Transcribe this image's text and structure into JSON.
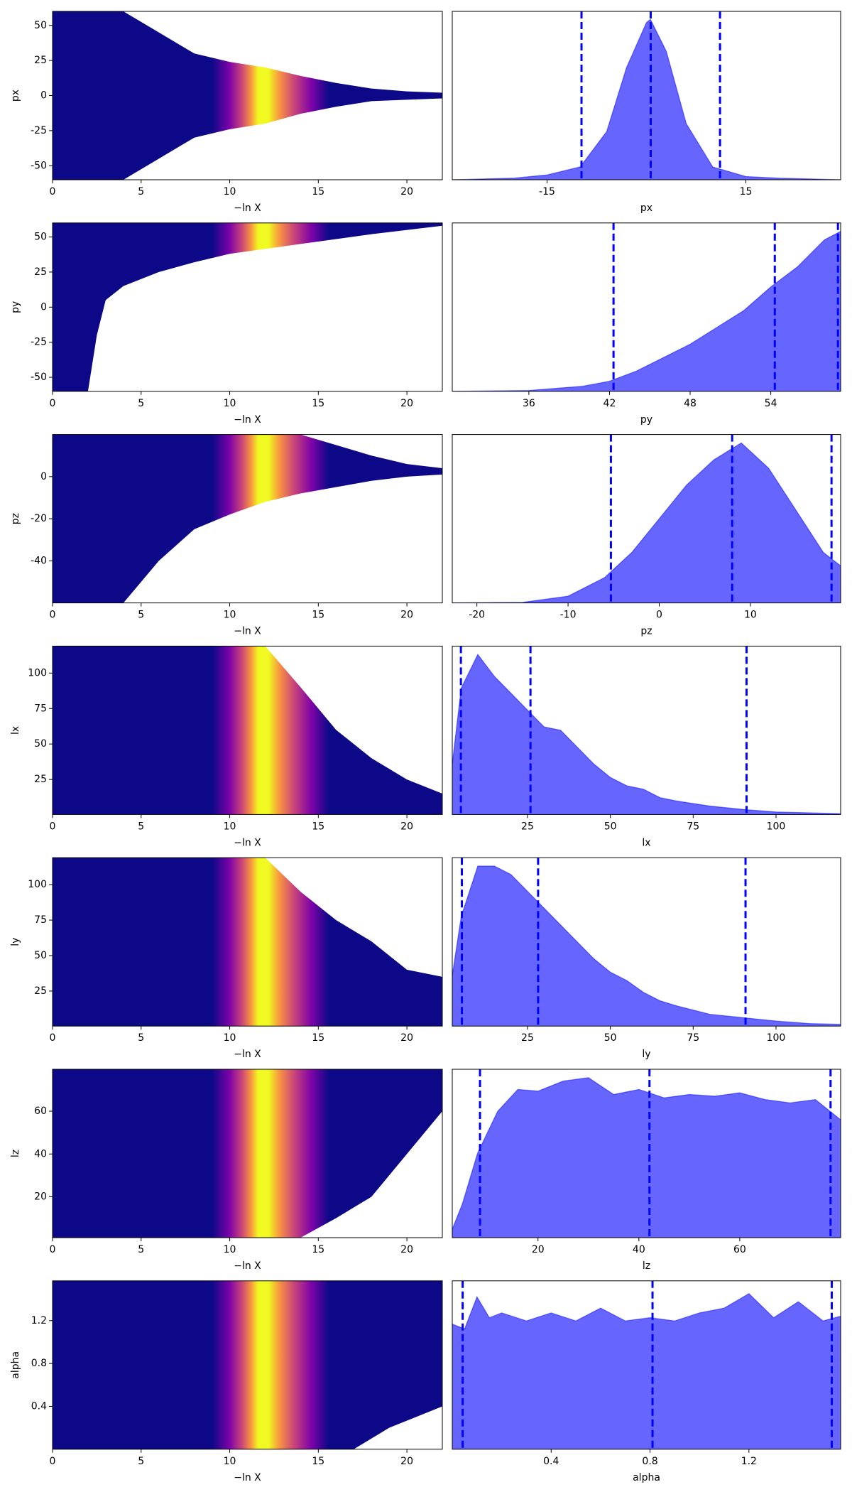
{
  "colormap": {
    "x": [
      9,
      10,
      10.7,
      11.2,
      11.6,
      12.2,
      12.8,
      13.6,
      14.6,
      15.6
    ],
    "colors": [
      "#0d0887",
      "#7e03a8",
      "#cc4778",
      "#f89540",
      "#f0f921",
      "#f0f921",
      "#f89540",
      "#cc4778",
      "#7e03a8",
      "#0d0887"
    ]
  },
  "chart_data": [
    {
      "type": "trace",
      "ylabel": "px",
      "xlabel": "−ln X",
      "xlim": [
        0,
        22
      ],
      "xticks": [
        0,
        5,
        10,
        15,
        20
      ],
      "ylim": [
        -60,
        60
      ],
      "yticks": [
        -50,
        -25,
        0,
        25,
        50
      ],
      "x": [
        0,
        4,
        6,
        8,
        10,
        12,
        14,
        16,
        18,
        20,
        22
      ],
      "upper": [
        60,
        60,
        45,
        30,
        24,
        20,
        14,
        9,
        5,
        3,
        2
      ],
      "lower": [
        -60,
        -60,
        -45,
        -30,
        -24,
        -20,
        -13,
        -8,
        -4,
        -3,
        -2
      ]
    },
    {
      "type": "density",
      "xlabel": "px",
      "xlim": [
        -29.3,
        29.3
      ],
      "xticks": [
        -15,
        15
      ],
      "ylim": [
        0,
        1.05
      ],
      "x": [
        -29.3,
        -20,
        -15,
        -10,
        -6,
        -3,
        0,
        0.6,
        3,
        6,
        10,
        15,
        20,
        29.3
      ],
      "values": [
        0,
        0.01,
        0.03,
        0.08,
        0.3,
        0.7,
        0.98,
        1,
        0.8,
        0.35,
        0.08,
        0.02,
        0.01,
        0
      ],
      "quantiles": [
        -9.8,
        0.64,
        11.1
      ],
      "color": "#6666ff",
      "line_color": "#0000ff"
    },
    {
      "type": "trace",
      "ylabel": "py",
      "xlabel": "−ln X",
      "xlim": [
        0,
        22
      ],
      "xticks": [
        0,
        5,
        10,
        15,
        20
      ],
      "ylim": [
        -60,
        60
      ],
      "yticks": [
        -50,
        -25,
        0,
        25,
        50
      ],
      "x": [
        0,
        1.5,
        2,
        2.5,
        3,
        4,
        6,
        8,
        10,
        14,
        18,
        22
      ],
      "upper": [
        60,
        60,
        60,
        60,
        60,
        60,
        60,
        60,
        60,
        60,
        60,
        60
      ],
      "lower": [
        -60,
        -60,
        -60,
        -20,
        5,
        15,
        25,
        32,
        38,
        45,
        52,
        58
      ]
    },
    {
      "type": "density",
      "xlabel": "py",
      "xlim": [
        30.3,
        59.2
      ],
      "xticks": [
        36,
        42,
        48,
        54
      ],
      "ylim": [
        0,
        1
      ],
      "x": [
        30.3,
        36,
        40,
        42,
        44,
        46,
        48,
        50,
        52,
        54,
        56,
        58,
        59.2
      ],
      "values": [
        0,
        0.005,
        0.03,
        0.06,
        0.12,
        0.2,
        0.28,
        0.38,
        0.48,
        0.62,
        0.74,
        0.9,
        0.95
      ],
      "quantiles": [
        42.3,
        54.3,
        59.0
      ],
      "color": "#6666ff",
      "line_color": "#0000ff"
    },
    {
      "type": "trace",
      "ylabel": "pz",
      "xlabel": "−ln X",
      "xlim": [
        0,
        22
      ],
      "xticks": [
        0,
        5,
        10,
        15,
        20
      ],
      "ylim": [
        -60,
        20
      ],
      "yticks": [
        -40,
        -20,
        0
      ],
      "x": [
        0,
        2,
        4,
        6,
        8,
        10,
        12,
        14,
        16,
        18,
        20,
        22
      ],
      "upper": [
        20,
        20,
        20,
        20,
        20,
        20,
        20,
        20,
        15,
        10,
        6,
        4
      ],
      "lower": [
        -60,
        -60,
        -60,
        -40,
        -25,
        -18,
        -12,
        -8,
        -5,
        -2,
        0,
        1
      ]
    },
    {
      "type": "density",
      "xlabel": "pz",
      "xlim": [
        -22.7,
        19.9
      ],
      "xticks": [
        -20,
        -10,
        0,
        10
      ],
      "ylim": [
        0,
        1
      ],
      "x": [
        -22.7,
        -15,
        -10,
        -6,
        -3,
        0,
        3,
        6,
        9,
        12,
        15,
        18,
        19.9
      ],
      "values": [
        0,
        0.003,
        0.04,
        0.15,
        0.3,
        0.5,
        0.7,
        0.85,
        0.95,
        0.8,
        0.55,
        0.3,
        0.22
      ],
      "quantiles": [
        -5.3,
        8.0,
        18.9
      ],
      "color": "#6666ff",
      "line_color": "#0000ff"
    },
    {
      "type": "trace",
      "ylabel": "lx",
      "xlabel": "−ln X",
      "xlim": [
        0,
        22
      ],
      "xticks": [
        0,
        5,
        10,
        15,
        20
      ],
      "ylim": [
        0.3,
        119
      ],
      "yticks": [
        25,
        50,
        75,
        100
      ],
      "x": [
        0,
        12,
        14,
        16,
        18,
        20,
        22
      ],
      "upper": [
        119,
        119,
        90,
        60,
        40,
        25,
        15
      ],
      "lower": [
        0.3,
        0.3,
        0.3,
        0.3,
        0.3,
        0.3,
        0.3
      ]
    },
    {
      "type": "density",
      "xlabel": "lx",
      "xlim": [
        2.3,
        119.5
      ],
      "xticks": [
        25,
        50,
        75,
        100
      ],
      "ylim": [
        0,
        1
      ],
      "x": [
        2.3,
        5,
        10,
        15,
        20,
        25,
        30,
        35,
        40,
        45,
        50,
        55,
        60,
        65,
        70,
        80,
        90,
        100,
        110,
        119.5
      ],
      "values": [
        0.3,
        0.75,
        0.95,
        0.82,
        0.72,
        0.62,
        0.52,
        0.5,
        0.4,
        0.3,
        0.22,
        0.17,
        0.15,
        0.1,
        0.08,
        0.05,
        0.03,
        0.015,
        0.01,
        0.005
      ],
      "quantiles": [
        4.9,
        25.9,
        91.1
      ],
      "color": "#6666ff",
      "line_color": "#0000ff"
    },
    {
      "type": "trace",
      "ylabel": "ly",
      "xlabel": "−ln X",
      "xlim": [
        0,
        22
      ],
      "xticks": [
        0,
        5,
        10,
        15,
        20
      ],
      "ylim": [
        0.3,
        119
      ],
      "yticks": [
        25,
        50,
        75,
        100
      ],
      "x": [
        0,
        12,
        14,
        16,
        18,
        20,
        22
      ],
      "upper": [
        119,
        119,
        95,
        75,
        60,
        40,
        35
      ],
      "lower": [
        0.3,
        0.3,
        0.3,
        0.3,
        0.3,
        0.3,
        0.3
      ]
    },
    {
      "type": "density",
      "xlabel": "ly",
      "xlim": [
        2.3,
        119.5
      ],
      "xticks": [
        25,
        50,
        75,
        100
      ],
      "ylim": [
        0,
        1
      ],
      "x": [
        2.3,
        5,
        10,
        15,
        20,
        25,
        30,
        35,
        40,
        45,
        50,
        55,
        60,
        65,
        70,
        80,
        90,
        100,
        110,
        119.5
      ],
      "values": [
        0.3,
        0.65,
        0.95,
        0.95,
        0.9,
        0.8,
        0.7,
        0.6,
        0.5,
        0.4,
        0.32,
        0.27,
        0.2,
        0.15,
        0.12,
        0.07,
        0.05,
        0.03,
        0.015,
        0.01
      ],
      "quantiles": [
        5.2,
        28.2,
        90.8
      ],
      "color": "#6666ff",
      "line_color": "#0000ff"
    },
    {
      "type": "trace",
      "ylabel": "lz",
      "xlabel": "−ln X",
      "xlim": [
        0,
        22
      ],
      "xticks": [
        0,
        5,
        10,
        15,
        20
      ],
      "ylim": [
        0.9,
        79.6
      ],
      "yticks": [
        20,
        40,
        60
      ],
      "x": [
        0,
        14,
        16,
        18,
        20,
        22
      ],
      "upper": [
        79.6,
        79.6,
        79.6,
        79.6,
        79.6,
        79.6
      ],
      "lower": [
        0.9,
        0.9,
        10,
        20,
        40,
        60
      ]
    },
    {
      "type": "density",
      "xlabel": "lz",
      "xlim": [
        3,
        80
      ],
      "xticks": [
        20,
        40,
        60
      ],
      "ylim": [
        0,
        1
      ],
      "x": [
        3,
        5,
        8,
        12,
        16,
        20,
        25,
        30,
        35,
        40,
        45,
        50,
        55,
        60,
        65,
        70,
        75,
        80
      ],
      "values": [
        0.05,
        0.2,
        0.5,
        0.75,
        0.88,
        0.87,
        0.93,
        0.95,
        0.85,
        0.88,
        0.83,
        0.85,
        0.84,
        0.86,
        0.82,
        0.8,
        0.82,
        0.7
      ],
      "quantiles": [
        8.5,
        42.1,
        78
      ],
      "color": "#6666ff",
      "line_color": "#0000ff"
    },
    {
      "type": "trace",
      "ylabel": "alpha",
      "xlabel": "−ln X",
      "xlim": [
        0,
        22
      ],
      "xticks": [
        0,
        5,
        10,
        15,
        20
      ],
      "ylim": [
        0,
        1.571
      ],
      "yticks": [
        0.4,
        0.8,
        1.2
      ],
      "x": [
        0,
        15,
        17,
        19,
        22
      ],
      "upper": [
        1.571,
        1.571,
        1.571,
        1.571,
        1.571
      ],
      "lower": [
        0,
        0,
        0,
        0.2,
        0.4
      ]
    },
    {
      "type": "density",
      "xlabel": "alpha",
      "xlim": [
        0,
        1.571
      ],
      "xticks": [
        0.4,
        0.8,
        1.2
      ],
      "ylim": [
        0,
        1.05
      ],
      "x": [
        0,
        0.05,
        0.1,
        0.15,
        0.2,
        0.3,
        0.4,
        0.5,
        0.6,
        0.7,
        0.8,
        0.9,
        1.0,
        1.1,
        1.2,
        1.3,
        1.4,
        1.5,
        1.571
      ],
      "values": [
        0.78,
        0.75,
        0.95,
        0.82,
        0.85,
        0.8,
        0.85,
        0.8,
        0.88,
        0.8,
        0.82,
        0.8,
        0.85,
        0.88,
        0.97,
        0.82,
        0.92,
        0.8,
        0.83
      ],
      "quantiles": [
        0.042,
        0.81,
        1.535
      ],
      "color": "#6666ff",
      "line_color": "#0000ff"
    }
  ]
}
